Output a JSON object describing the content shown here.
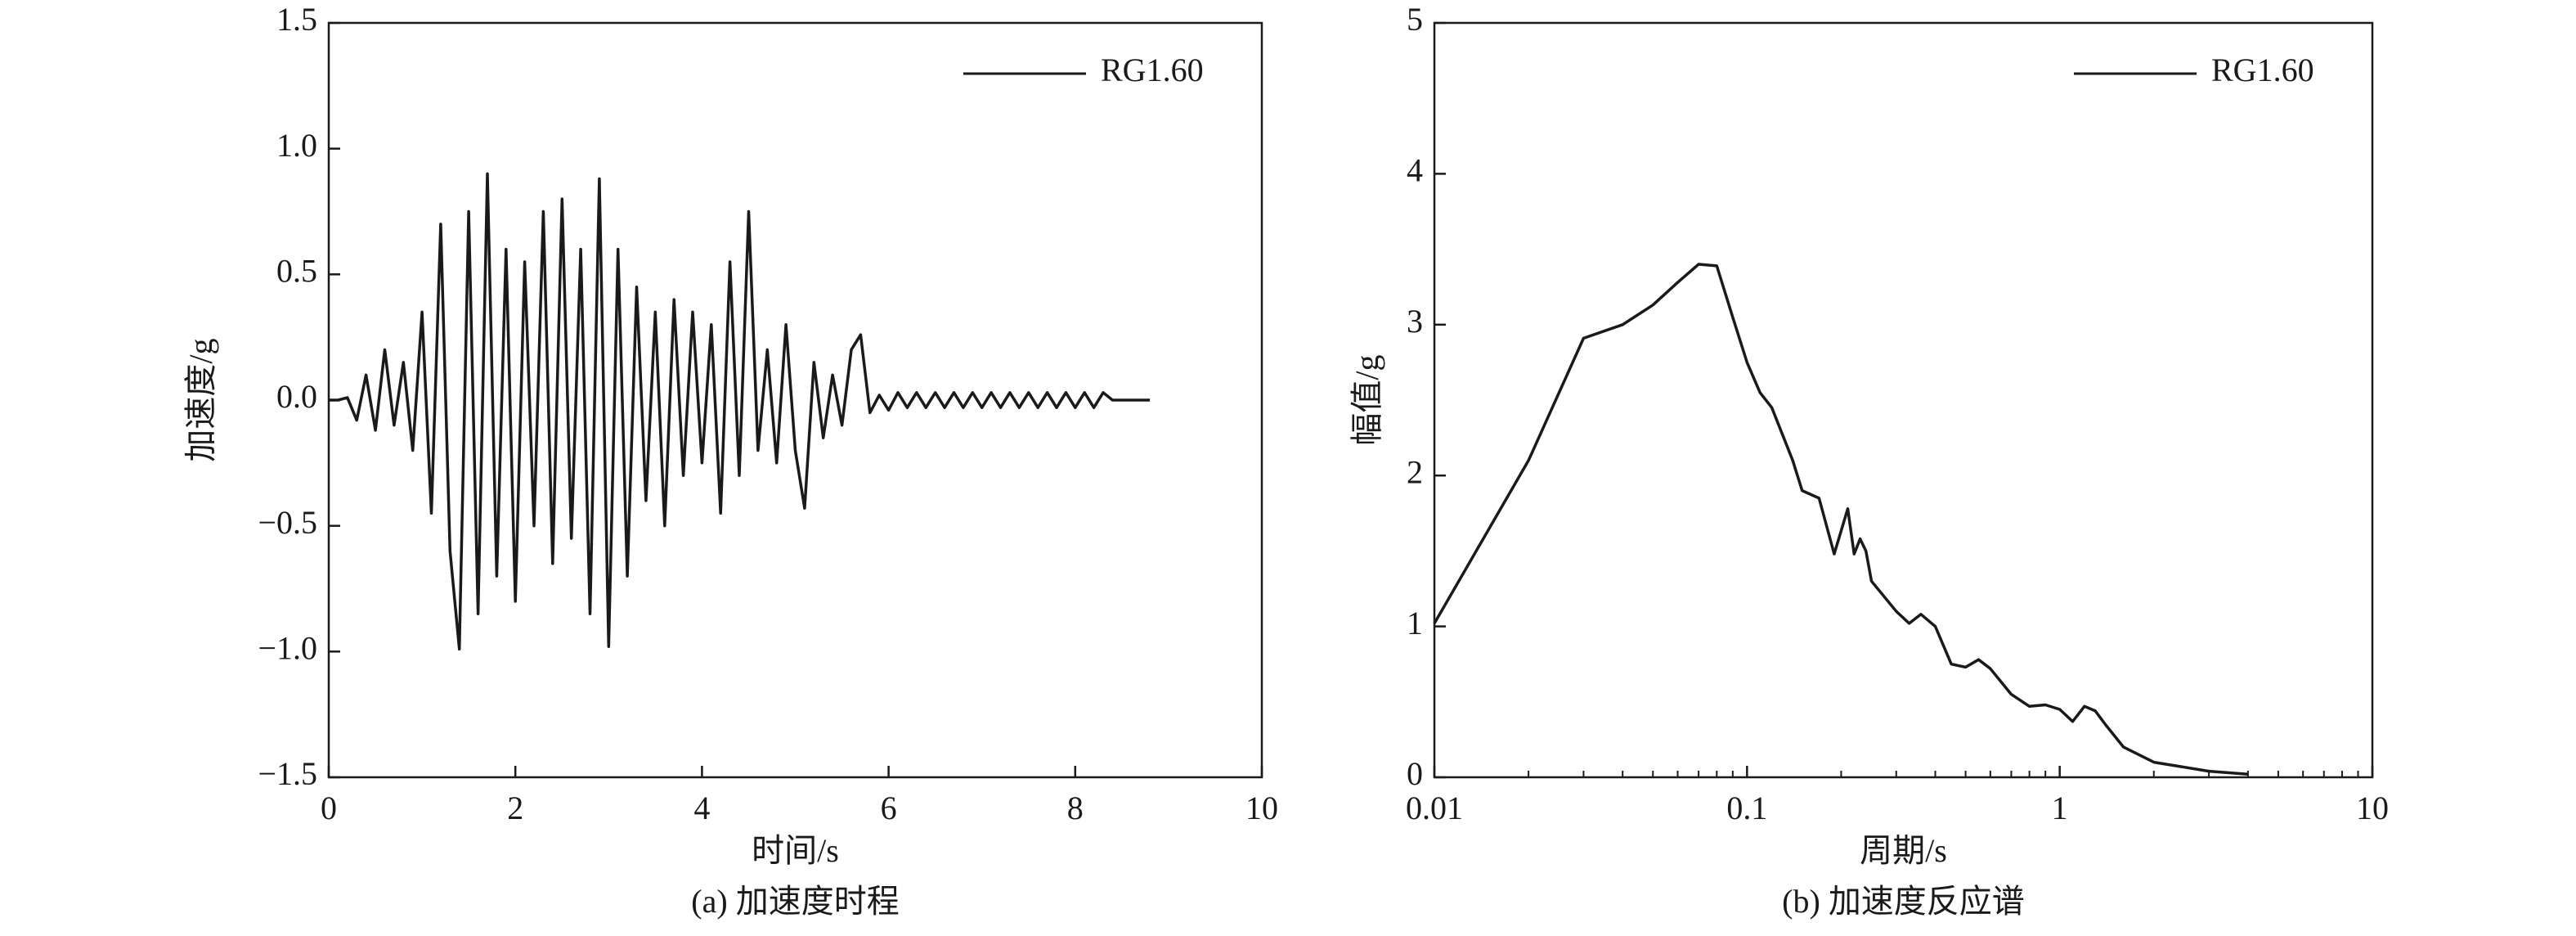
{
  "chart_data": [
    {
      "type": "line",
      "caption": "(a) 加速度时程",
      "xlabel": "时间/s",
      "ylabel": "加速度/g",
      "xlim": [
        0,
        10
      ],
      "xticks": [
        0,
        2,
        4,
        6,
        8,
        10
      ],
      "ylim": [
        -1.5,
        1.5
      ],
      "yticks": [
        {
          "value": -1.5,
          "label": "−1.5"
        },
        {
          "value": -1,
          "label": "−1.0"
        },
        {
          "value": -0.5,
          "label": "−0.5"
        },
        {
          "value": 0,
          "label": "0.0"
        },
        0.5,
        {
          "value": 1,
          "label": "1.0"
        },
        1.5
      ],
      "legend": "upper right",
      "x": [
        0,
        0.1,
        0.2,
        0.3,
        0.4,
        0.5,
        0.6,
        0.7,
        0.8,
        0.9,
        1,
        1.1,
        1.2,
        1.3,
        1.4,
        1.5,
        1.6,
        1.7,
        1.8,
        1.9,
        2,
        2.1,
        2.2,
        2.3,
        2.4,
        2.5,
        2.6,
        2.7,
        2.8,
        2.9,
        3,
        3.1,
        3.2,
        3.3,
        3.4,
        3.5,
        3.6,
        3.7,
        3.8,
        3.9,
        4,
        4.1,
        4.2,
        4.3,
        4.4,
        4.5,
        4.6,
        4.7,
        4.8,
        4.9,
        5,
        5.1,
        5.2,
        5.3,
        5.4,
        5.5,
        5.6,
        5.7,
        5.8,
        5.9,
        6,
        6.1,
        6.2,
        6.3,
        6.4,
        6.5,
        6.6,
        6.7,
        6.8,
        6.9,
        7,
        7.1,
        7.2,
        7.3,
        7.4,
        7.5,
        7.6,
        7.7,
        7.8,
        7.9,
        8,
        8.1,
        8.2,
        8.3,
        8.4,
        8.5,
        8.6,
        8.7,
        8.8
      ],
      "series": [
        {
          "name": "RG1.60",
          "color": "#1a1a1a",
          "values": [
            0,
            0,
            0.01,
            -0.08,
            0.1,
            -0.12,
            0.2,
            -0.1,
            0.15,
            -0.2,
            0.35,
            -0.45,
            0.7,
            -0.6,
            -0.99,
            0.75,
            -0.85,
            0.9,
            -0.7,
            0.6,
            -0.8,
            0.55,
            -0.5,
            0.75,
            -0.65,
            0.8,
            -0.55,
            0.6,
            -0.85,
            0.88,
            -0.98,
            0.6,
            -0.7,
            0.45,
            -0.4,
            0.35,
            -0.5,
            0.4,
            -0.3,
            0.35,
            -0.25,
            0.3,
            -0.45,
            0.55,
            -0.3,
            0.75,
            -0.2,
            0.2,
            -0.25,
            0.3,
            -0.2,
            -0.43,
            0.15,
            -0.15,
            0.1,
            -0.1,
            0.2,
            0.26,
            -0.05,
            0.02,
            -0.04,
            0.03,
            -0.03,
            0.03,
            -0.03,
            0.03,
            -0.03,
            0.03,
            -0.03,
            0.03,
            -0.03,
            0.03,
            -0.03,
            0.03,
            -0.03,
            0.03,
            -0.03,
            0.03,
            -0.03,
            0.03,
            -0.03,
            0.03,
            -0.03,
            0.03,
            0,
            0,
            0,
            0,
            0
          ]
        }
      ]
    },
    {
      "type": "line",
      "caption": "(b) 加速度反应谱",
      "xlabel": "周期/s",
      "ylabel": "幅值/g",
      "xscale": "log",
      "xlim": [
        0.01,
        10
      ],
      "xticks": [
        0.01,
        0.1,
        1,
        10
      ],
      "xminorticks": [
        0.02,
        0.03,
        0.04,
        0.05,
        0.06,
        0.07,
        0.08,
        0.09,
        0.2,
        0.3,
        0.4,
        0.5,
        0.6,
        0.7,
        0.8,
        0.9,
        2,
        3,
        4,
        5,
        6,
        7,
        8,
        9
      ],
      "ylim": [
        0,
        5
      ],
      "yticks": [
        0,
        1,
        2,
        3,
        4,
        5
      ],
      "legend": "upper right",
      "x": [
        0.01,
        0.02,
        0.03,
        0.04,
        0.05,
        0.06,
        0.07,
        0.08,
        0.09,
        0.1,
        0.11,
        0.12,
        0.14,
        0.15,
        0.17,
        0.19,
        0.21,
        0.22,
        0.23,
        0.24,
        0.25,
        0.3,
        0.33,
        0.36,
        0.4,
        0.45,
        0.5,
        0.55,
        0.6,
        0.7,
        0.8,
        0.9,
        1,
        1.1,
        1.2,
        1.3,
        1.4,
        1.6,
        2,
        3,
        4
      ],
      "series": [
        {
          "name": "RG1.60",
          "color": "#1a1a1a",
          "values": [
            1.02,
            2.1,
            2.91,
            3.0,
            3.13,
            3.28,
            3.4,
            3.39,
            3.05,
            2.75,
            2.55,
            2.45,
            2.1,
            1.9,
            1.85,
            1.48,
            1.78,
            1.48,
            1.58,
            1.5,
            1.3,
            1.1,
            1.02,
            1.08,
            1.0,
            0.75,
            0.73,
            0.78,
            0.72,
            0.55,
            0.47,
            0.48,
            0.45,
            0.37,
            0.47,
            0.44,
            0.35,
            0.2,
            0.1,
            0.04,
            0.02
          ]
        }
      ]
    }
  ]
}
